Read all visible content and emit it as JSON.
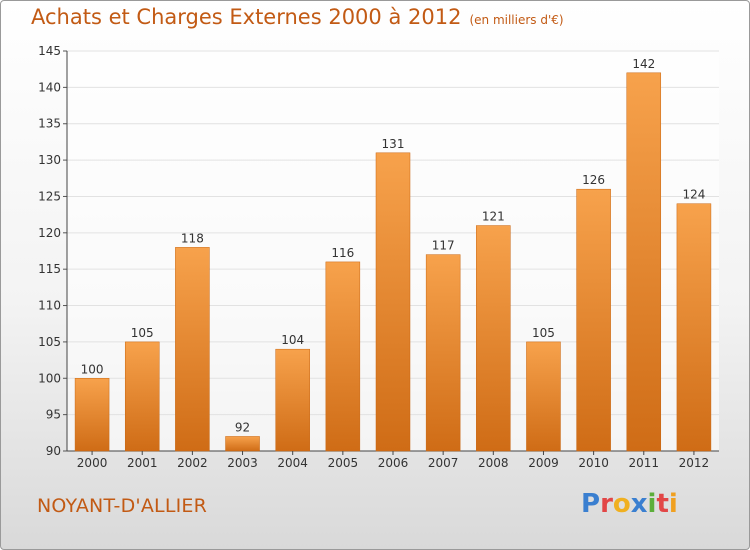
{
  "header": {
    "title": "Achats et Charges Externes 2000 à 2012",
    "units": "(en milliers d'€)"
  },
  "footer": {
    "location": "NOYANT-D'ALLIER",
    "brand": "Proxiti",
    "brand_letters": [
      {
        "ch": "P",
        "color": "#3a7fd0"
      },
      {
        "ch": "r",
        "color": "#e24646"
      },
      {
        "ch": "o",
        "color": "#f0b020"
      },
      {
        "ch": "x",
        "color": "#3a7fd0"
      },
      {
        "ch": "i",
        "color": "#5cae3a"
      },
      {
        "ch": "t",
        "color": "#e24646"
      },
      {
        "ch": "i",
        "color": "#f0a020"
      }
    ]
  },
  "colors": {
    "bar_light": "#f7a24c",
    "bar_dark": "#cf6c16",
    "text": "#c25a14"
  },
  "chart_data": {
    "type": "bar",
    "categories": [
      "2000",
      "2001",
      "2002",
      "2003",
      "2004",
      "2005",
      "2006",
      "2007",
      "2008",
      "2009",
      "2010",
      "2011",
      "2012"
    ],
    "values": [
      100,
      105,
      118,
      92,
      104,
      116,
      131,
      117,
      121,
      105,
      126,
      142,
      124
    ],
    "ylim": [
      90,
      145
    ],
    "yticks": [
      90,
      95,
      100,
      105,
      110,
      115,
      120,
      125,
      130,
      135,
      140,
      145
    ],
    "grid": true,
    "legend": "none"
  }
}
